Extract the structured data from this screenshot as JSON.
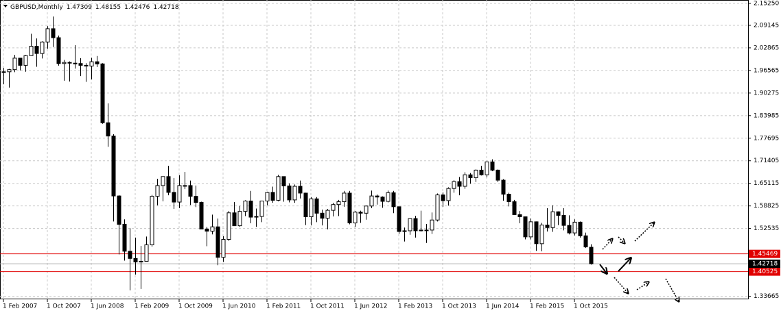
{
  "chart_data": {
    "type": "candlestick",
    "symbol": "GBPUSD,Monthly",
    "categories": [
      "1 Feb 2007",
      null,
      null,
      null,
      null,
      null,
      null,
      null,
      "1 Oct 2007",
      null,
      null,
      null,
      null,
      null,
      null,
      null,
      "1 Jun 2008",
      null,
      null,
      null,
      null,
      null,
      null,
      null,
      "1 Feb 2009",
      null,
      null,
      null,
      null,
      null,
      null,
      null,
      "1 Oct 2009",
      null,
      null,
      null,
      null,
      null,
      null,
      null,
      "1 Jun 2010",
      null,
      null,
      null,
      null,
      null,
      null,
      null,
      "1 Feb 2011",
      null,
      null,
      null,
      null,
      null,
      null,
      null,
      "1 Oct 2011",
      null,
      null,
      null,
      null,
      null,
      null,
      null,
      "1 Jun 2012",
      null,
      null,
      null,
      null,
      null,
      null,
      null,
      "1 Feb 2013",
      null,
      null,
      null,
      null,
      null,
      null,
      null,
      "1 Oct 2013",
      null,
      null,
      null,
      null,
      null,
      null,
      null,
      "1 Jun 2014",
      null,
      null,
      null,
      null,
      null,
      null,
      null,
      "1 Feb 2015",
      null,
      null,
      null,
      null,
      null,
      null,
      null,
      "1 Oct 2015",
      null,
      null,
      null
    ],
    "open": [
      1.961,
      1.962,
      1.968,
      2.0,
      1.98,
      2.007,
      2.033,
      2.013,
      2.045,
      2.082,
      2.057,
      1.985,
      1.988,
      1.986,
      1.985,
      1.98,
      1.978,
      1.99,
      1.984,
      1.82,
      1.783,
      1.616,
      1.537,
      1.462,
      1.442,
      1.432,
      1.434,
      1.48,
      1.615,
      1.645,
      1.67,
      1.626,
      1.599,
      1.645,
      1.645,
      1.615,
      1.598,
      1.524,
      1.518,
      1.53,
      1.445,
      1.495,
      1.569,
      1.533,
      1.573,
      1.602,
      1.557,
      1.559,
      1.602,
      1.626,
      1.604,
      1.67,
      1.644,
      1.605,
      1.643,
      1.624,
      1.558,
      1.608,
      1.568,
      1.554,
      1.576,
      1.592,
      1.6,
      1.624,
      1.541,
      1.571,
      1.568,
      1.588,
      1.616,
      1.613,
      1.601,
      1.625,
      1.586,
      1.517,
      1.519,
      1.553,
      1.519,
      1.521,
      1.521,
      1.549,
      1.619,
      1.603,
      1.637,
      1.656,
      1.643,
      1.675,
      1.667,
      1.688,
      1.675,
      1.711,
      1.688,
      1.66,
      1.621,
      1.6,
      1.564,
      1.558,
      1.502,
      1.544,
      1.483,
      1.535,
      1.528,
      1.572,
      1.562,
      1.534,
      1.513,
      1.543,
      1.505,
      1.47309
    ],
    "high": [
      1.973,
      1.97,
      2.009,
      2.0,
      2.009,
      2.068,
      2.055,
      2.047,
      2.089,
      2.116,
      2.063,
      1.995,
      1.991,
      2.036,
      2.0,
      1.986,
      2.001,
      2.006,
      1.986,
      1.874,
      1.788,
      1.618,
      1.551,
      1.526,
      1.5,
      1.477,
      1.503,
      1.619,
      1.664,
      1.67,
      1.7,
      1.666,
      1.674,
      1.683,
      1.659,
      1.645,
      1.6,
      1.53,
      1.564,
      1.553,
      1.504,
      1.574,
      1.599,
      1.588,
      1.604,
      1.63,
      1.581,
      1.603,
      1.628,
      1.642,
      1.675,
      1.67,
      1.651,
      1.648,
      1.659,
      1.625,
      1.613,
      1.613,
      1.578,
      1.58,
      1.597,
      1.605,
      1.63,
      1.63,
      1.574,
      1.575,
      1.589,
      1.631,
      1.62,
      1.615,
      1.631,
      1.63,
      1.586,
      1.528,
      1.554,
      1.561,
      1.575,
      1.538,
      1.57,
      1.623,
      1.626,
      1.64,
      1.66,
      1.669,
      1.682,
      1.68,
      1.69,
      1.7,
      1.711,
      1.718,
      1.69,
      1.663,
      1.625,
      1.605,
      1.574,
      1.559,
      1.553,
      1.545,
      1.541,
      1.582,
      1.59,
      1.573,
      1.582,
      1.562,
      1.551,
      1.545,
      1.514,
      1.48155
    ],
    "low": [
      1.927,
      1.918,
      1.961,
      1.966,
      1.962,
      2.006,
      1.976,
      1.999,
      2.026,
      2.031,
      1.979,
      1.937,
      1.935,
      1.971,
      1.95,
      1.934,
      1.941,
      1.975,
      1.817,
      1.753,
      1.545,
      1.453,
      1.436,
      1.353,
      1.397,
      1.357,
      1.441,
      1.475,
      1.59,
      1.601,
      1.618,
      1.58,
      1.582,
      1.635,
      1.591,
      1.585,
      1.524,
      1.476,
      1.509,
      1.423,
      1.432,
      1.491,
      1.535,
      1.53,
      1.56,
      1.54,
      1.53,
      1.543,
      1.59,
      1.597,
      1.601,
      1.6,
      1.598,
      1.597,
      1.609,
      1.535,
      1.534,
      1.543,
      1.534,
      1.523,
      1.559,
      1.56,
      1.586,
      1.537,
      1.53,
      1.541,
      1.55,
      1.582,
      1.592,
      1.583,
      1.598,
      1.568,
      1.51,
      1.489,
      1.508,
      1.5,
      1.517,
      1.485,
      1.51,
      1.545,
      1.586,
      1.589,
      1.625,
      1.618,
      1.636,
      1.65,
      1.655,
      1.673,
      1.668,
      1.685,
      1.655,
      1.603,
      1.587,
      1.563,
      1.54,
      1.495,
      1.495,
      1.463,
      1.462,
      1.517,
      1.516,
      1.535,
      1.52,
      1.509,
      1.506,
      1.5,
      1.471,
      1.42476
    ],
    "close": [
      1.962,
      1.968,
      2.0,
      1.98,
      2.007,
      2.033,
      2.013,
      2.045,
      2.082,
      2.057,
      1.985,
      1.988,
      1.986,
      1.985,
      1.98,
      1.978,
      1.99,
      1.984,
      1.82,
      1.783,
      1.616,
      1.537,
      1.462,
      1.442,
      1.432,
      1.434,
      1.48,
      1.615,
      1.645,
      1.67,
      1.626,
      1.599,
      1.645,
      1.645,
      1.615,
      1.598,
      1.524,
      1.518,
      1.53,
      1.445,
      1.495,
      1.569,
      1.533,
      1.573,
      1.602,
      1.557,
      1.559,
      1.602,
      1.626,
      1.604,
      1.67,
      1.644,
      1.605,
      1.643,
      1.624,
      1.558,
      1.608,
      1.568,
      1.554,
      1.576,
      1.592,
      1.6,
      1.624,
      1.541,
      1.571,
      1.568,
      1.588,
      1.616,
      1.613,
      1.601,
      1.625,
      1.586,
      1.517,
      1.519,
      1.553,
      1.519,
      1.521,
      1.521,
      1.549,
      1.619,
      1.603,
      1.637,
      1.656,
      1.643,
      1.675,
      1.667,
      1.688,
      1.675,
      1.711,
      1.688,
      1.66,
      1.621,
      1.6,
      1.564,
      1.558,
      1.502,
      1.544,
      1.483,
      1.535,
      1.528,
      1.572,
      1.562,
      1.534,
      1.513,
      1.543,
      1.505,
      1.474,
      1.42718
    ],
    "ylim": [
      1.3281,
      2.162
    ],
    "yticks": [
      {
        "value": 2.1525,
        "label": "2.15250"
      },
      2.09145,
      2.02865,
      1.96565,
      1.90275,
      1.83985,
      1.77695,
      1.71405,
      1.65115,
      1.58825,
      1.52535,
      1.33665
    ],
    "grid": true,
    "levels": [
      {
        "value": 1.45469,
        "color": "#e00000"
      },
      {
        "value": 1.40525,
        "color": "#e00000"
      }
    ],
    "bull_color": "#ffffff",
    "bear_color": "#000000"
  }
}
